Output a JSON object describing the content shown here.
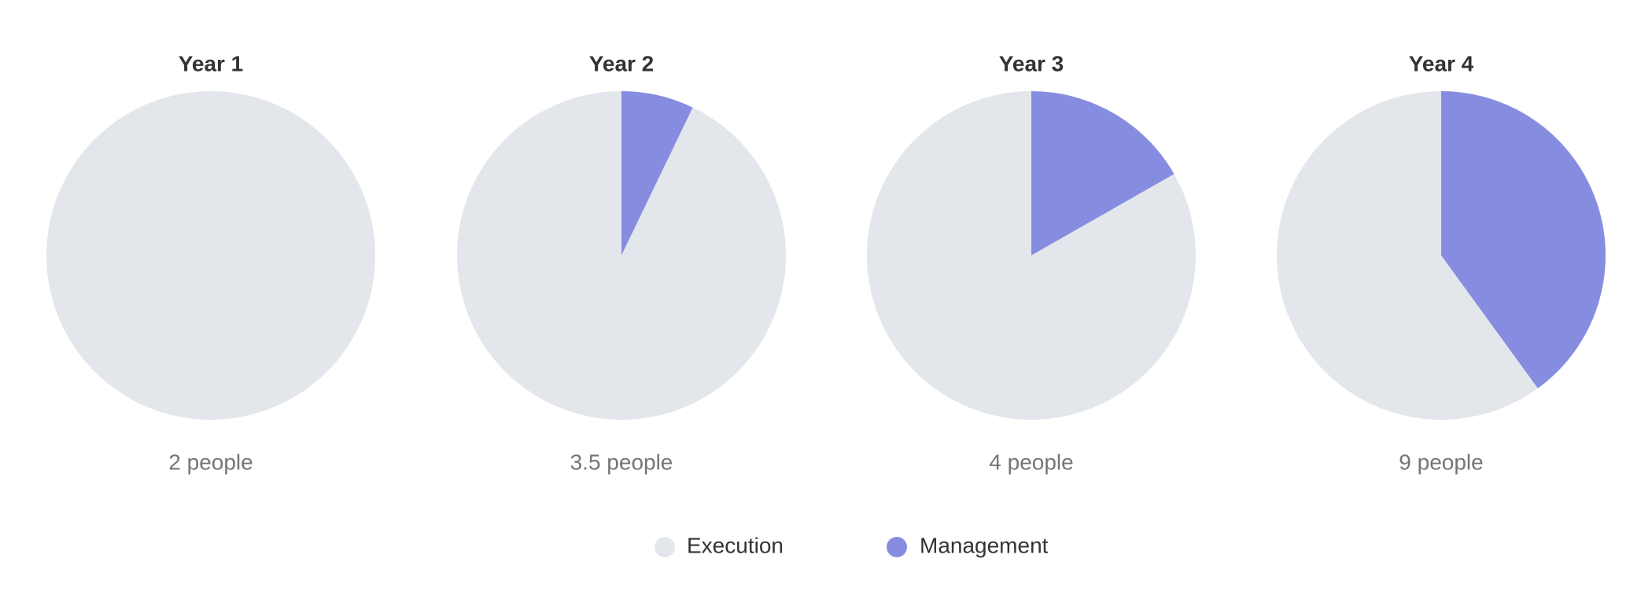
{
  "chart_data": {
    "type": "pie",
    "series_names": [
      "Execution",
      "Management"
    ],
    "colors": {
      "Execution": "#e3e6eb",
      "Management": "#868de0"
    },
    "pies": [
      {
        "title": "Year 1",
        "caption": "2 people",
        "values": {
          "Execution": 2,
          "Management": 0
        }
      },
      {
        "title": "Year 2",
        "caption": "3.5 people",
        "values": {
          "Execution": 3.25,
          "Management": 0.25
        }
      },
      {
        "title": "Year 3",
        "caption": "4 people",
        "values": {
          "Execution": 3.33,
          "Management": 0.67
        }
      },
      {
        "title": "Year 4",
        "caption": "9 people",
        "values": {
          "Execution": 5.4,
          "Management": 3.6
        }
      }
    ],
    "legend": {
      "placement": "bottom-center",
      "items": [
        "Execution",
        "Management"
      ]
    }
  }
}
